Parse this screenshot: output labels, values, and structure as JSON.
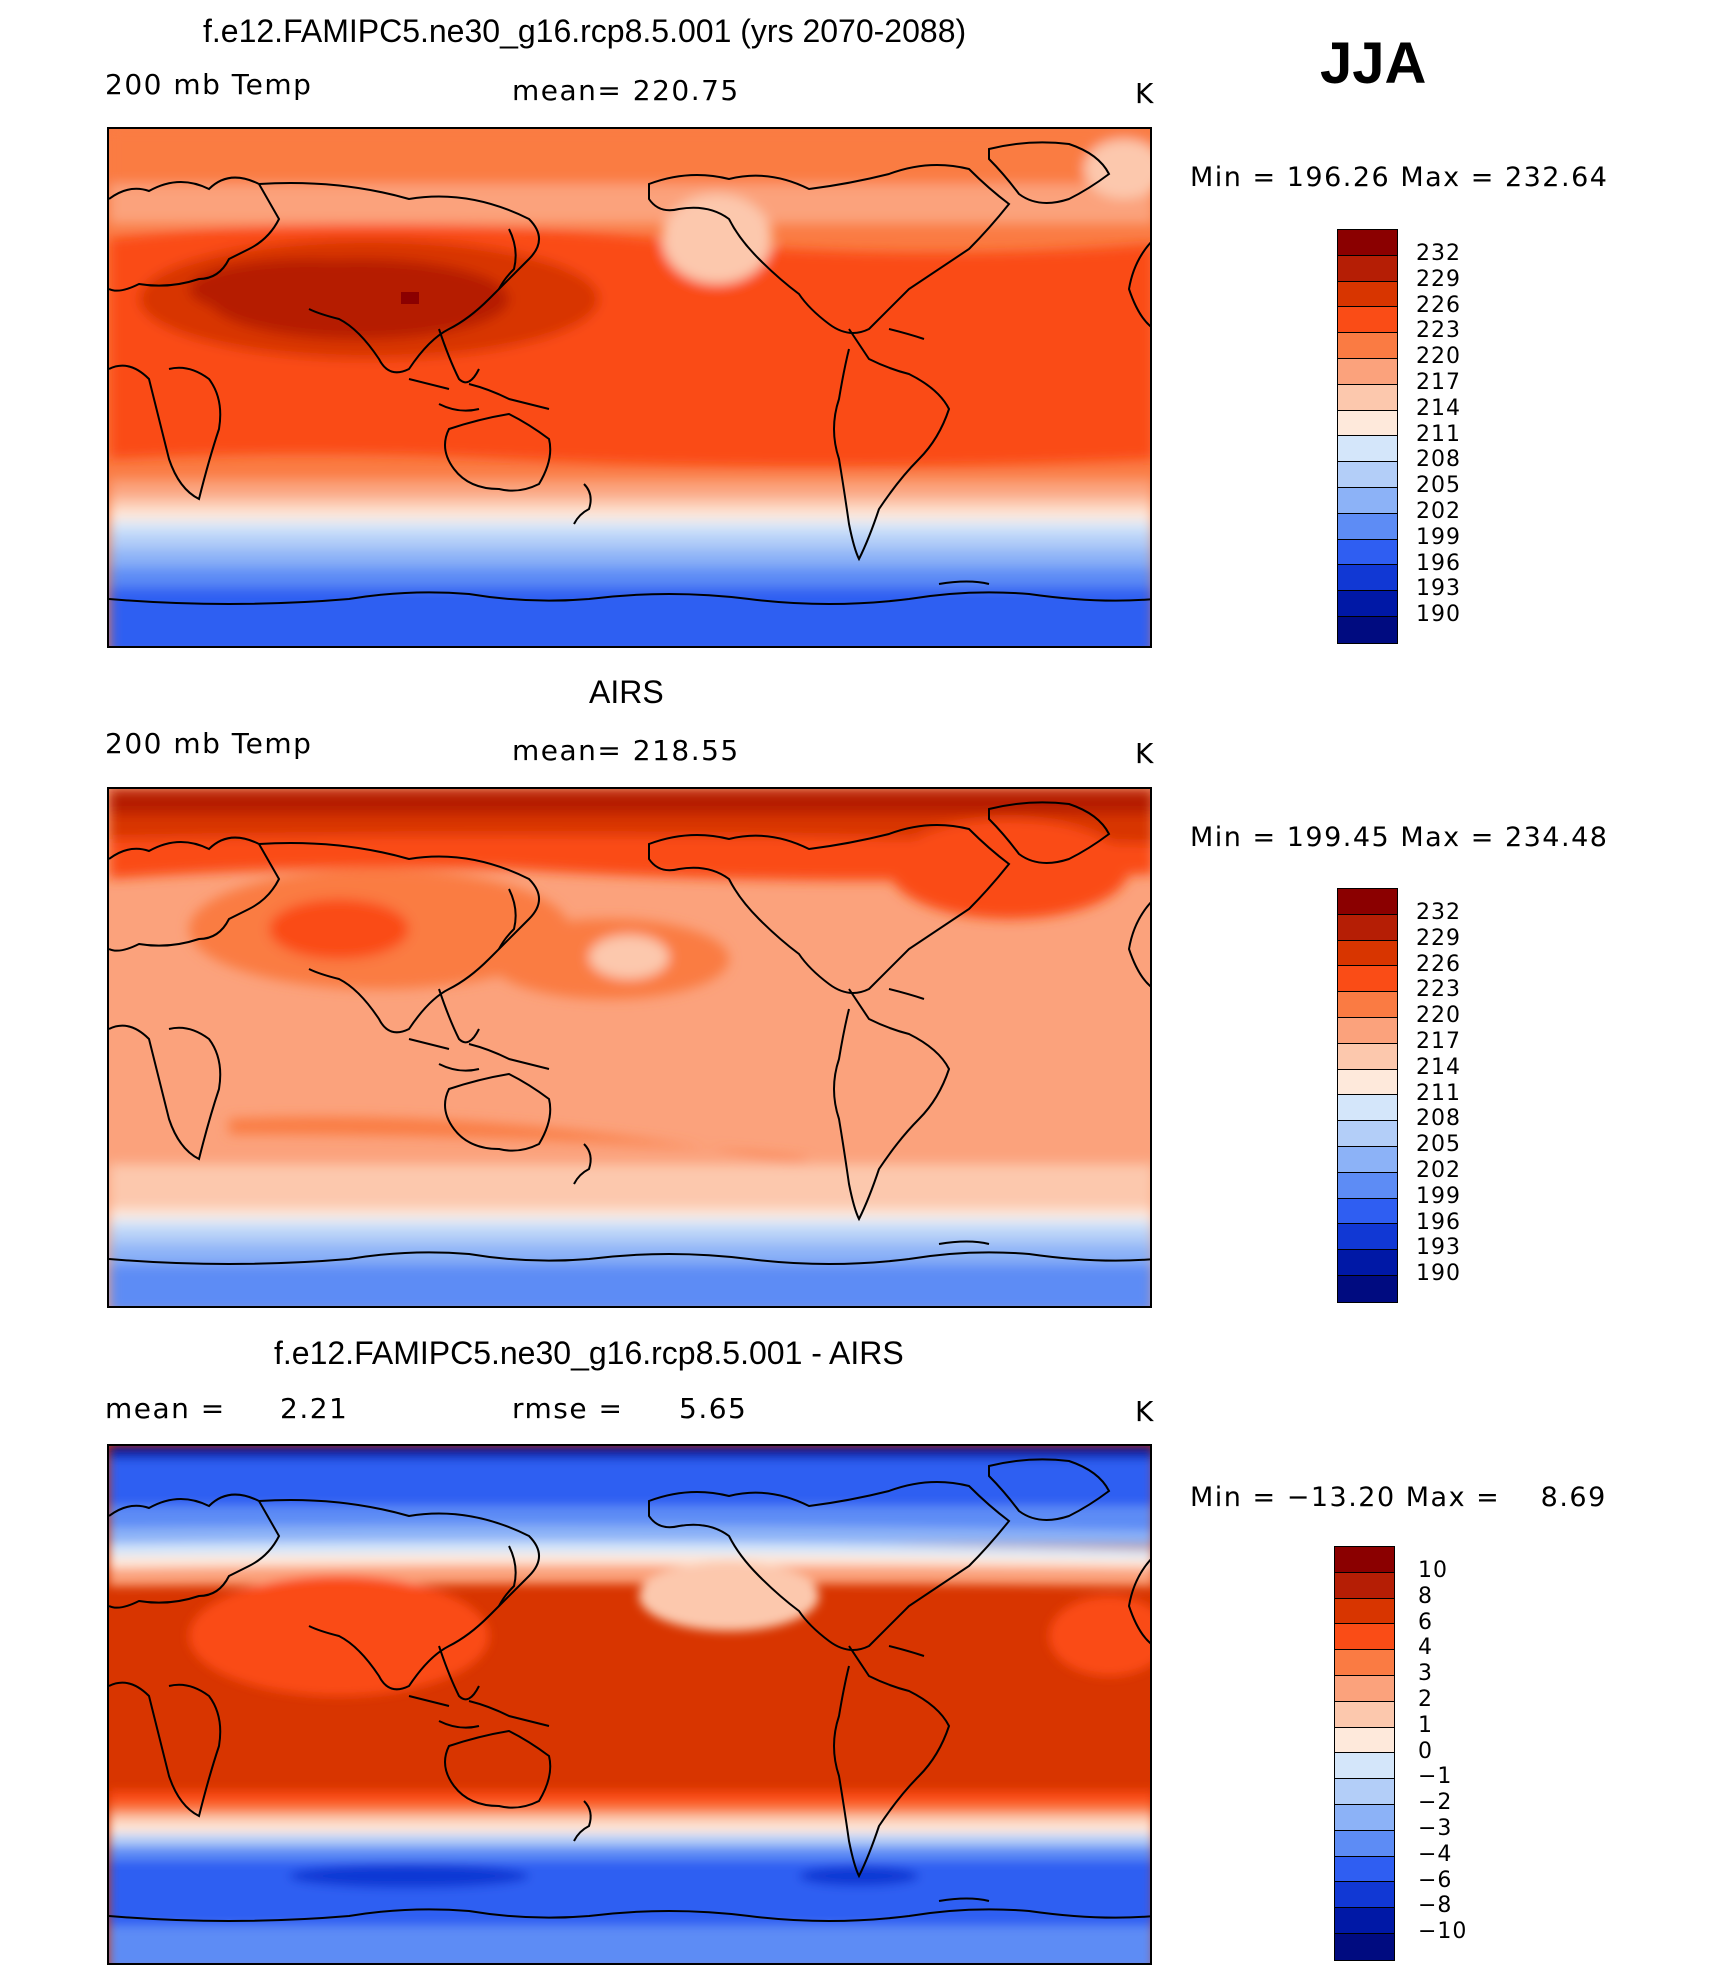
{
  "season": "JJA",
  "units_label": "K",
  "panels": [
    {
      "title": "f.e12.FAMIPC5.ne30_g16.rcp8.5.001 (yrs 2070-2088)",
      "left_label": "200 mb Temp",
      "center_label": "mean= 220.75",
      "right_label": "K",
      "min_label": "Min",
      "min_value": "196.26",
      "max_label": "Max",
      "max_value": "232.64",
      "colorbar_labels": [
        "232",
        "229",
        "226",
        "223",
        "220",
        "217",
        "214",
        "211",
        "208",
        "205",
        "202",
        "199",
        "196",
        "193",
        "190"
      ]
    },
    {
      "title": "AIRS",
      "left_label": "200 mb Temp",
      "center_label": "mean= 218.55",
      "right_label": "K",
      "min_label": "Min",
      "min_value": "199.45",
      "max_label": "Max",
      "max_value": "234.48",
      "colorbar_labels": [
        "232",
        "229",
        "226",
        "223",
        "220",
        "217",
        "214",
        "211",
        "208",
        "205",
        "202",
        "199",
        "196",
        "193",
        "190"
      ]
    },
    {
      "title": "f.e12.FAMIPC5.ne30_g16.rcp8.5.001 - AIRS",
      "left_label": "mean =",
      "left_value": "2.21",
      "center_label": "rmse =",
      "center_value": "5.65",
      "right_label": "K",
      "min_label": "Min",
      "min_value": "−13.20",
      "max_label": "Max",
      "max_value": "8.69",
      "colorbar_labels": [
        "10",
        "8",
        "6",
        "4",
        "3",
        "2",
        "1",
        "0",
        "−1",
        "−2",
        "−3",
        "−4",
        "−6",
        "−8",
        "−10"
      ]
    }
  ],
  "colorbar_colors": [
    "#8b0000",
    "#b51e05",
    "#d83500",
    "#fa4c16",
    "#fa7b43",
    "#fba27c",
    "#fcc8ad",
    "#fee9db",
    "#d4e6fa",
    "#b3cef8",
    "#8cb2f7",
    "#5d8cf5",
    "#2f5ef2",
    "#1138d4",
    "#0018a6",
    "#000b80"
  ],
  "icons": [
    "coastline-map"
  ]
}
